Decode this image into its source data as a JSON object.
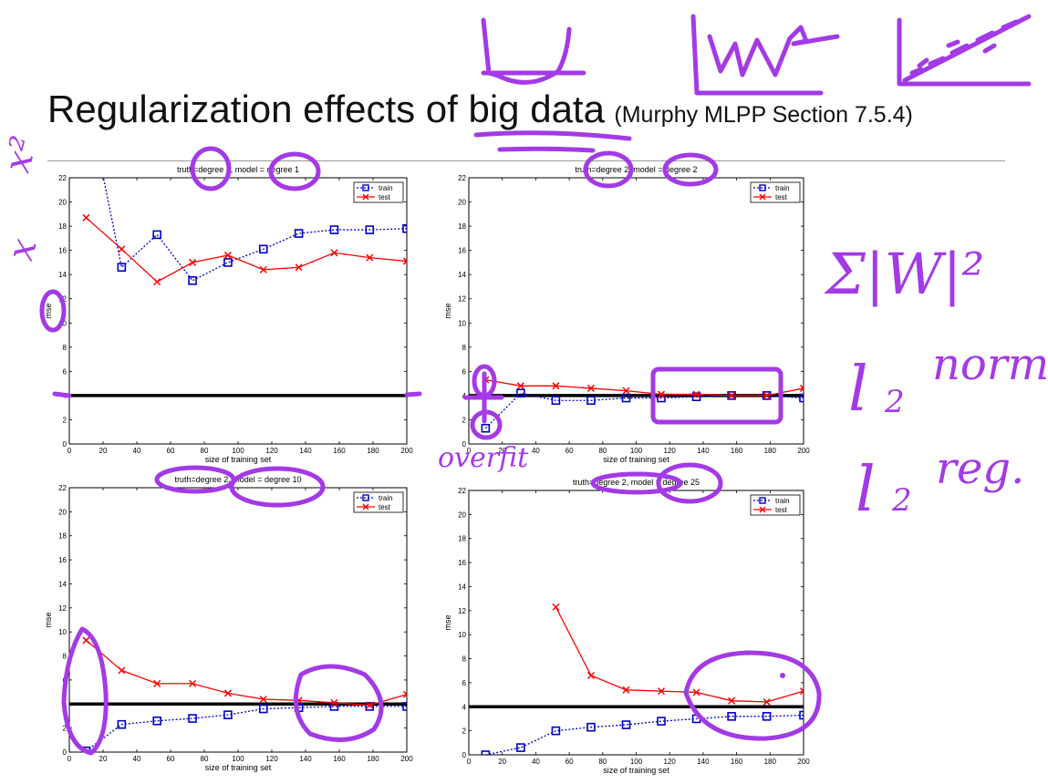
{
  "slide": {
    "title": "Regularization effects of big data",
    "subtitle": "(Murphy MLPP Section 7.5.4)"
  },
  "chart_data": [
    {
      "type": "line",
      "title": "truth=degree 2, model = degree 1",
      "xlabel": "size of training set",
      "ylabel": "mse",
      "xlim": [
        0,
        200
      ],
      "ylim": [
        0,
        22
      ],
      "xticks": [
        0,
        20,
        40,
        60,
        80,
        100,
        120,
        140,
        160,
        180,
        200
      ],
      "yticks": [
        0,
        2,
        4,
        6,
        8,
        10,
        12,
        14,
        16,
        18,
        20,
        22
      ],
      "legend": "top-right",
      "reference_line_y": 4,
      "series": [
        {
          "name": "train",
          "color": "#0000cc",
          "style": "dotted-square",
          "x": [
            10,
            31,
            52,
            73,
            94,
            115,
            136,
            157,
            178,
            200
          ],
          "y": [
            29,
            14.6,
            17.3,
            13.5,
            15.0,
            16.1,
            17.4,
            17.7,
            17.7,
            17.8
          ]
        },
        {
          "name": "test",
          "color": "#ff0000",
          "style": "solid-x",
          "x": [
            10,
            31,
            52,
            73,
            94,
            115,
            136,
            157,
            178,
            200
          ],
          "y": [
            18.7,
            16.1,
            13.4,
            15.0,
            15.6,
            14.4,
            14.6,
            15.8,
            15.4,
            15.1
          ]
        }
      ]
    },
    {
      "type": "line",
      "title": "truth=degree 2, model = degree 2",
      "xlabel": "size of training set",
      "ylabel": "mse",
      "xlim": [
        0,
        200
      ],
      "ylim": [
        0,
        22
      ],
      "xticks": [
        0,
        20,
        40,
        60,
        80,
        100,
        120,
        140,
        160,
        180,
        200
      ],
      "yticks": [
        0,
        2,
        4,
        6,
        8,
        10,
        12,
        14,
        16,
        18,
        20,
        22
      ],
      "legend": "top-right",
      "reference_line_y": 4,
      "series": [
        {
          "name": "train",
          "color": "#0000cc",
          "style": "dotted-square",
          "x": [
            10,
            31,
            52,
            73,
            94,
            115,
            136,
            157,
            178,
            200
          ],
          "y": [
            1.3,
            4.2,
            3.6,
            3.6,
            3.8,
            3.8,
            3.9,
            4.0,
            4.0,
            3.8
          ]
        },
        {
          "name": "test",
          "color": "#ff0000",
          "style": "solid-x",
          "x": [
            10,
            31,
            52,
            73,
            94,
            115,
            136,
            157,
            178,
            200
          ],
          "y": [
            5.3,
            4.8,
            4.8,
            4.6,
            4.4,
            4.1,
            4.1,
            4.0,
            4.0,
            4.6
          ]
        }
      ]
    },
    {
      "type": "line",
      "title": "truth=degree 2, model = degree 10",
      "xlabel": "size of training set",
      "ylabel": "mse",
      "xlim": [
        0,
        200
      ],
      "ylim": [
        0,
        22
      ],
      "xticks": [
        0,
        20,
        40,
        60,
        80,
        100,
        120,
        140,
        160,
        180,
        200
      ],
      "yticks": [
        0,
        2,
        4,
        6,
        8,
        10,
        12,
        14,
        16,
        18,
        20,
        22
      ],
      "legend": "top-right",
      "reference_line_y": 4,
      "series": [
        {
          "name": "train",
          "color": "#0000cc",
          "style": "dotted-square",
          "x": [
            10,
            31,
            52,
            73,
            94,
            115,
            136,
            157,
            178,
            200
          ],
          "y": [
            0.1,
            2.3,
            2.6,
            2.8,
            3.1,
            3.6,
            3.7,
            3.8,
            3.8,
            3.8
          ]
        },
        {
          "name": "test",
          "color": "#ff0000",
          "style": "solid-x",
          "x": [
            10,
            31,
            52,
            73,
            94,
            115,
            136,
            157,
            178,
            200
          ],
          "y": [
            9.3,
            6.8,
            5.7,
            5.7,
            4.9,
            4.4,
            4.3,
            4.1,
            3.9,
            4.8
          ]
        }
      ]
    },
    {
      "type": "line",
      "title": "truth=degree 2, model = degree 25",
      "xlabel": "size of training set",
      "ylabel": "mse",
      "xlim": [
        0,
        200
      ],
      "ylim": [
        0,
        22
      ],
      "xticks": [
        0,
        20,
        40,
        60,
        80,
        100,
        120,
        140,
        160,
        180,
        200
      ],
      "yticks": [
        0,
        2,
        4,
        6,
        8,
        10,
        12,
        14,
        16,
        18,
        20,
        22
      ],
      "legend": "top-right",
      "reference_line_y": 4,
      "series": [
        {
          "name": "train",
          "color": "#0000cc",
          "style": "dotted-square",
          "x": [
            10,
            31,
            52,
            73,
            94,
            115,
            136,
            157,
            178,
            200
          ],
          "y": [
            0.0,
            0.6,
            2.0,
            2.3,
            2.5,
            2.8,
            3.0,
            3.2,
            3.2,
            3.3
          ]
        },
        {
          "name": "test",
          "color": "#ff0000",
          "style": "solid-x",
          "x": [
            52,
            73,
            94,
            115,
            136,
            157,
            178,
            200
          ],
          "y": [
            12.3,
            6.6,
            5.4,
            5.3,
            5.2,
            4.5,
            4.4,
            5.3
          ]
        }
      ]
    }
  ],
  "annotations": {
    "overfit": "overfit",
    "l2_norm_l": "l",
    "l2_norm_sub": "2",
    "l2_norm_word": "norm",
    "l2_reg_l": "l",
    "l2_reg_sub": "2",
    "l2_reg_word": "reg.",
    "sum_w_sq": "Σ|W|²",
    "x_squared": "x²",
    "x_plain": "x",
    "ink_color": "#a33ae6"
  }
}
